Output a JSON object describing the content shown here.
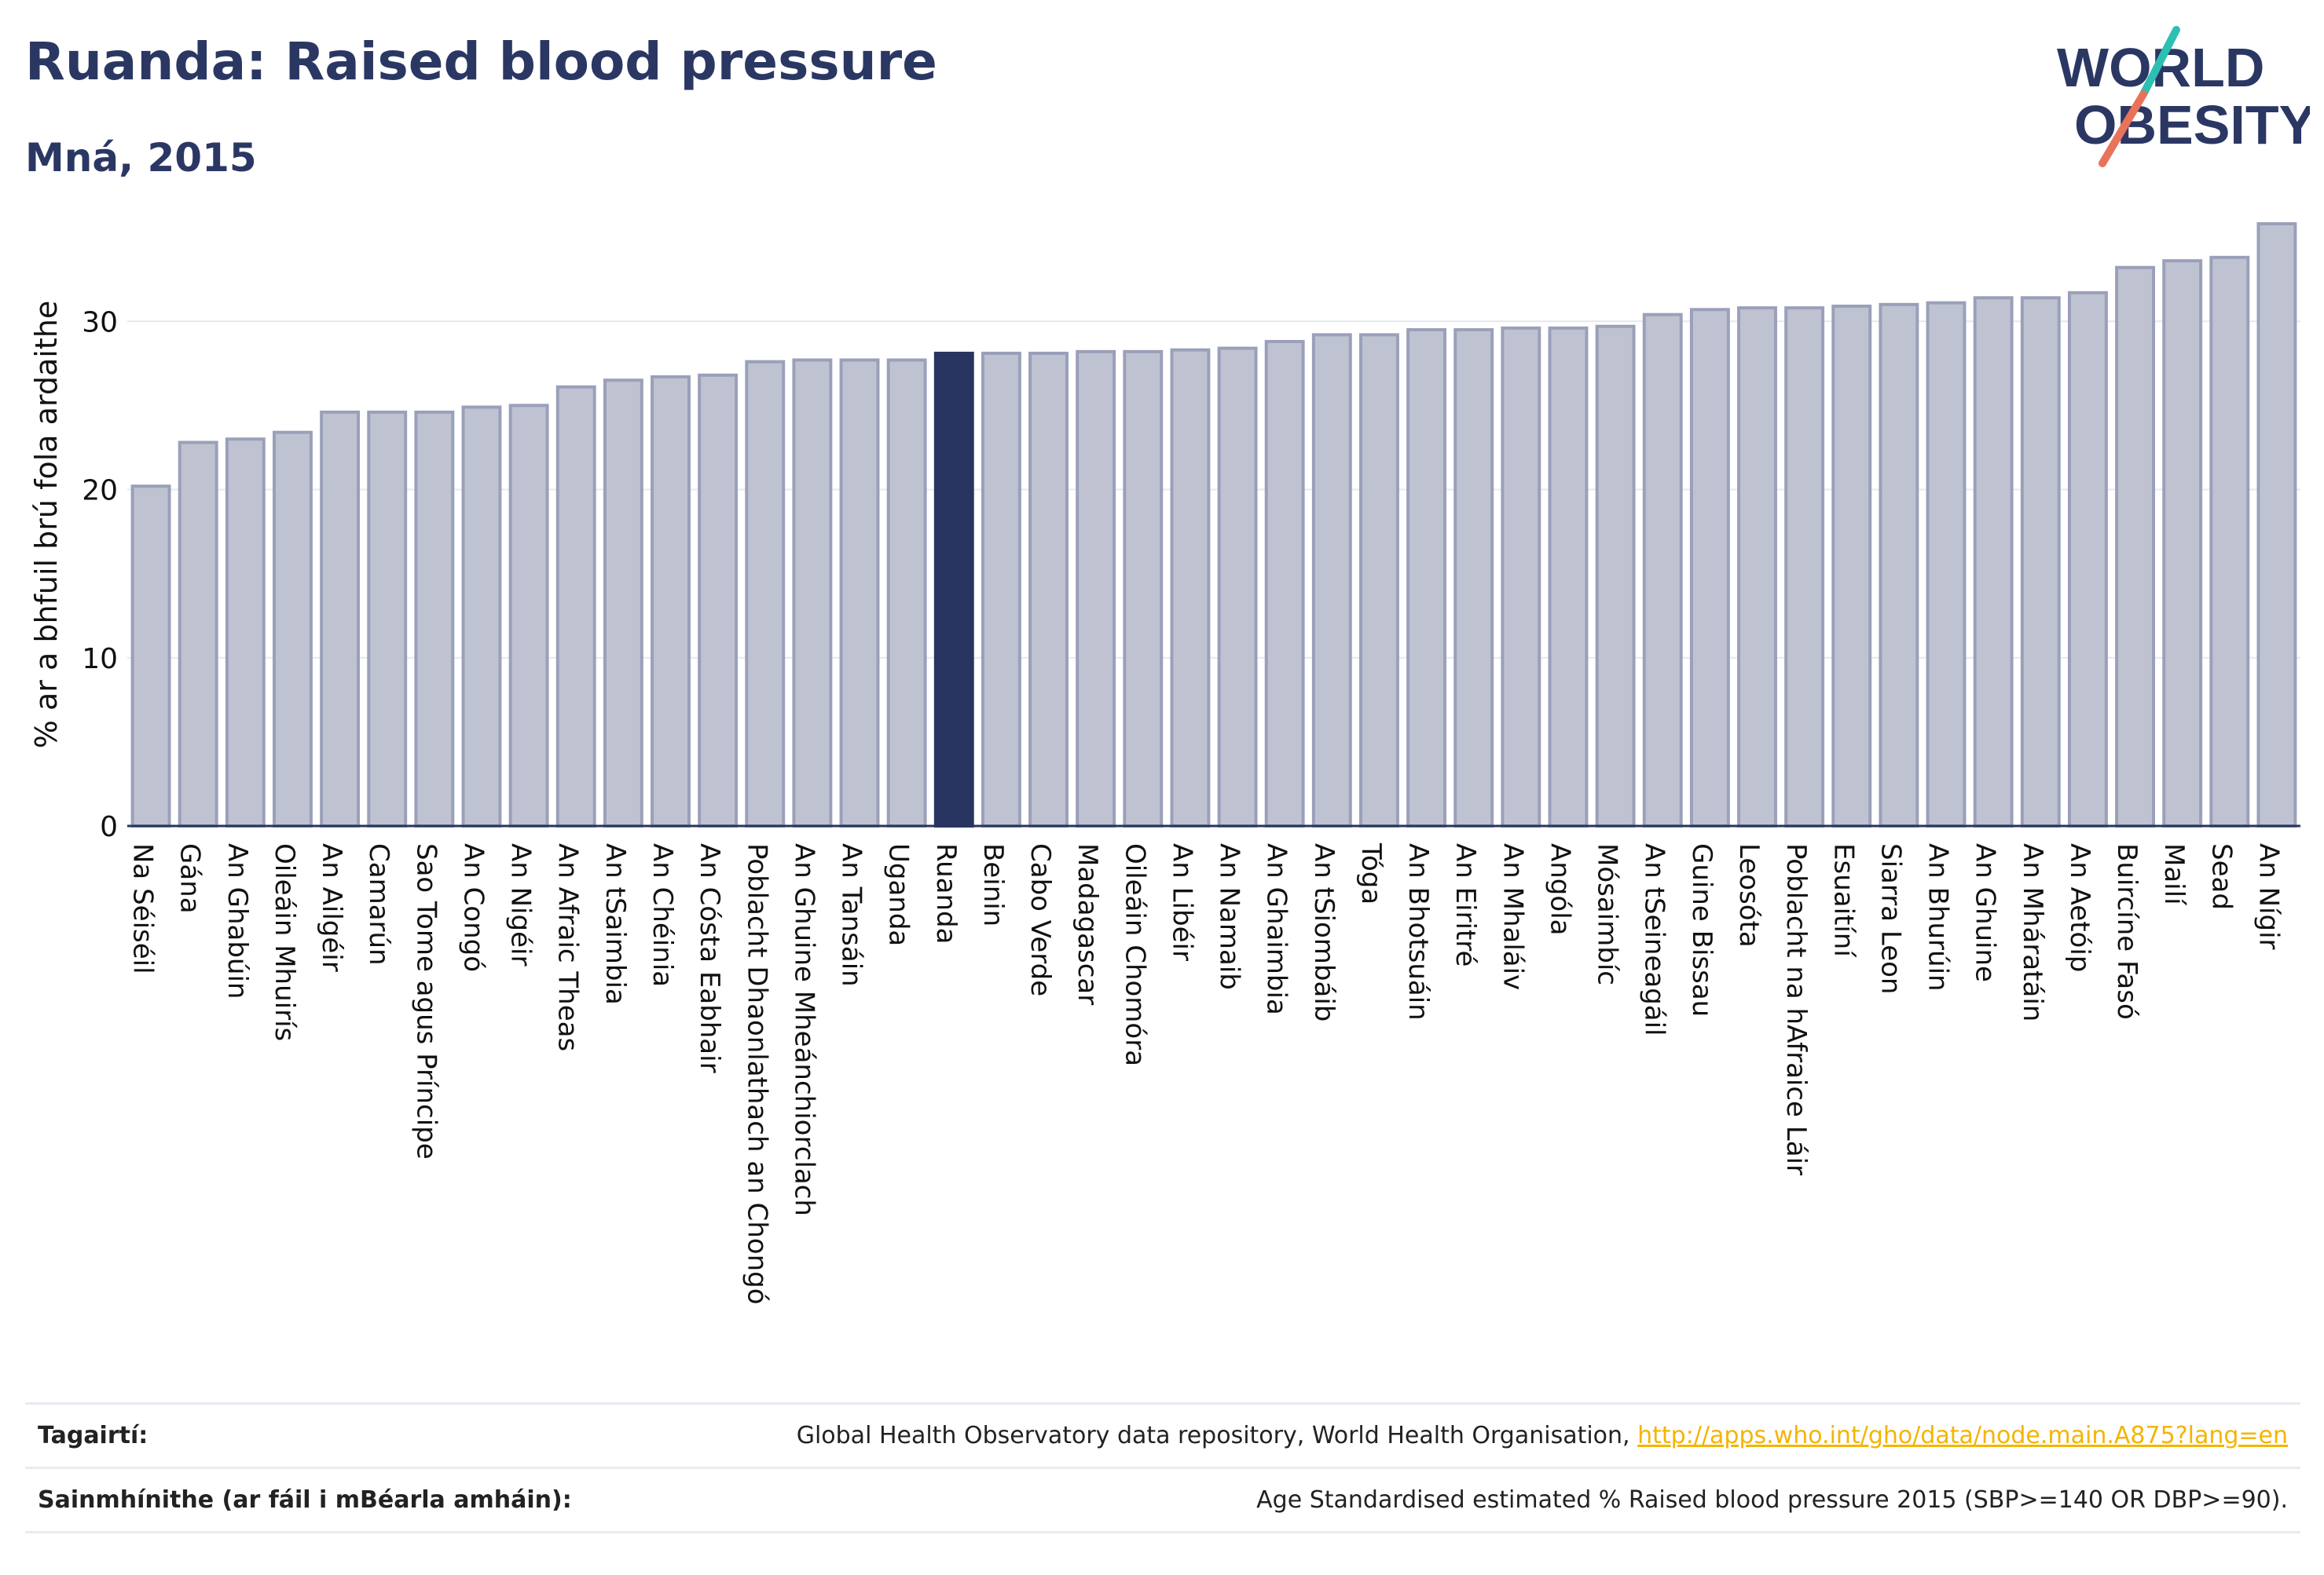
{
  "header": {
    "title": "Ruanda: Raised blood pressure",
    "subtitle": "Mná, 2015"
  },
  "logo": {
    "line1": "WORLD",
    "line2": "OBESITY",
    "slash_color_top": "#2ebfb3",
    "slash_color_bottom": "#e8735a"
  },
  "colors": {
    "bar": "#bfc3d1",
    "bar_border": "#9aa0b9",
    "highlight": "#283560",
    "grid": "#e6e8ef",
    "axis": "#283560"
  },
  "chart_data": {
    "type": "bar",
    "ylabel": "% ar a bhfuil brú fola ardaithe",
    "ylim": [
      0,
      36.5
    ],
    "yticks": [
      0,
      10,
      20,
      30
    ],
    "highlight": "Ruanda",
    "categories": [
      "Na Séiséil",
      "Gána",
      "An Ghabúin",
      "Oileáin Mhuirís",
      "An Ailgéir",
      "Camarún",
      "Sao Tome agus Príncipe",
      "An Congó",
      "An Nigéir",
      "An Afraic Theas",
      "An tSaimbia",
      "An Chéinia",
      "An Cósta Eabhair",
      "Poblacht Dhaonlathach an Chongó",
      "An Ghuine Mheánchiorclach",
      "An Tansáin",
      "Uganda",
      "Ruanda",
      "Beinin",
      "Cabo Verde",
      "Madagascar",
      "Oileáin Chomóra",
      "An Libéir",
      "An Namaib",
      "An Ghaimbia",
      "An tSiombáib",
      "Tóga",
      "An Bhotsuáin",
      "An Eiritré",
      "An Mhaláiv",
      "Angóla",
      "Mósaimbíc",
      "An tSeineagáil",
      "Guine Bissau",
      "Leosóta",
      "Poblacht na hAfraice Láir",
      "Esuaitíní",
      "Siarra Leon",
      "An Bhurúin",
      "An Ghuine",
      "An Mháratáin",
      "An Aetóip",
      "Buircíne Fasó",
      "Mailí",
      "Sead",
      "An Nígir"
    ],
    "values": [
      20.2,
      22.8,
      23.0,
      23.4,
      24.6,
      24.6,
      24.6,
      24.9,
      25.0,
      26.1,
      26.5,
      26.7,
      26.8,
      27.6,
      27.7,
      27.7,
      27.7,
      28.1,
      28.1,
      28.1,
      28.2,
      28.2,
      28.3,
      28.4,
      28.8,
      29.2,
      29.2,
      29.5,
      29.5,
      29.6,
      29.6,
      29.7,
      30.4,
      30.7,
      30.8,
      30.8,
      30.9,
      31.0,
      31.1,
      31.4,
      31.4,
      31.7,
      33.2,
      33.6,
      33.8,
      35.8
    ]
  },
  "footer": {
    "references_label": "Tagairtí:",
    "references_text": "Global Health Observatory data repository, World Health Organisation,",
    "references_link": "http://apps.who.int/gho/data/node.main.A875?lang=en",
    "definitions_label": "Sainmhínithe (ar fáil i mBéarla amháin):",
    "definitions_text": "Age Standardised estimated % Raised blood pressure 2015 (SBP>=140 OR DBP>=90)."
  }
}
